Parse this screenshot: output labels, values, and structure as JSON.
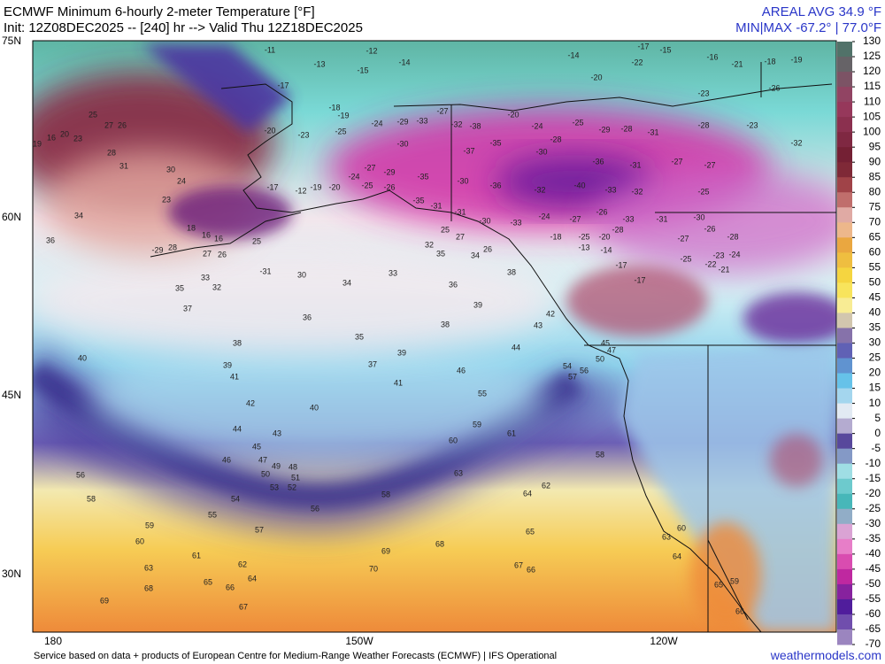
{
  "header": {
    "title": "ECMWF Minimum 6-hourly 2-meter Temperature [°F]",
    "init": "Init: 12Z08DEC2025 -- [240] hr --> Valid Thu 12Z18DEC2025",
    "areal_avg": "AREAL AVG 34.9 °F",
    "min_max": "MIN|MAX -67.2° | 77.0°F"
  },
  "lat_labels": [
    "75N",
    "60N",
    "45N",
    "30N"
  ],
  "lon_labels": [
    "180",
    "150W",
    "120W"
  ],
  "colorbar": {
    "ticks": [
      130,
      125,
      120,
      115,
      110,
      105,
      100,
      95,
      90,
      85,
      80,
      75,
      70,
      65,
      60,
      55,
      50,
      45,
      40,
      35,
      30,
      25,
      20,
      15,
      10,
      5,
      0,
      -5,
      -10,
      -15,
      -20,
      -25,
      -30,
      -35,
      -40,
      -45,
      -50,
      -55,
      -60,
      -65,
      -70
    ]
  },
  "map_labels": [
    -11,
    -12,
    -13,
    -14,
    -15,
    -14,
    -17,
    -15,
    -22,
    -16,
    -21,
    -18,
    -19,
    -20,
    -23,
    -26,
    -17,
    -18,
    -19,
    -20,
    -23,
    -25,
    -24,
    -29,
    -33,
    -27,
    -32,
    -38,
    -35,
    -20,
    -24,
    -28,
    -25,
    -29,
    -28,
    -31,
    -28,
    -23,
    -32,
    -30,
    -37,
    -30,
    -36,
    -31,
    -27,
    -27,
    -27,
    -24,
    -29,
    -35,
    -30,
    -36,
    -32,
    -40,
    -33,
    -32,
    -25,
    -17,
    -12,
    -19,
    -20,
    -25,
    -26,
    -35,
    -31,
    -31,
    -30,
    -33,
    -24,
    -27,
    -26,
    -33,
    -31,
    -30,
    -18,
    -25,
    -20,
    -28,
    -27,
    -26,
    -28,
    -13,
    -14,
    -25,
    -22,
    -23,
    -24,
    -21,
    -17,
    -17,
    25,
    27,
    26,
    20,
    23,
    16,
    19,
    28,
    31,
    30,
    24,
    23,
    34,
    36,
    18,
    16,
    16,
    25,
    -29,
    28,
    27,
    26,
    -31,
    33,
    32,
    35,
    37,
    30,
    34,
    33,
    36,
    35,
    32,
    27,
    25,
    34,
    26,
    38,
    39,
    36,
    35,
    38,
    38,
    40,
    39,
    41,
    37,
    39,
    41,
    46,
    44,
    43,
    42,
    55,
    59,
    61,
    60,
    40,
    42,
    44,
    43,
    45,
    47,
    46,
    49,
    48,
    50,
    51,
    53,
    52,
    56,
    58,
    54,
    56,
    58,
    63,
    64,
    62,
    58,
    55,
    57,
    59,
    60,
    61,
    62,
    64,
    63,
    68,
    65,
    66,
    69,
    68,
    65,
    67,
    66,
    70,
    67,
    69,
    54,
    57,
    56,
    45,
    47,
    50,
    64,
    63,
    60,
    65,
    59,
    66
  ],
  "footer": {
    "credit": "Service based on data + products of European Centre for Medium-Range Weather Forecasts (ECMWF) | IFS Operational",
    "site": "weathermodels.com"
  }
}
